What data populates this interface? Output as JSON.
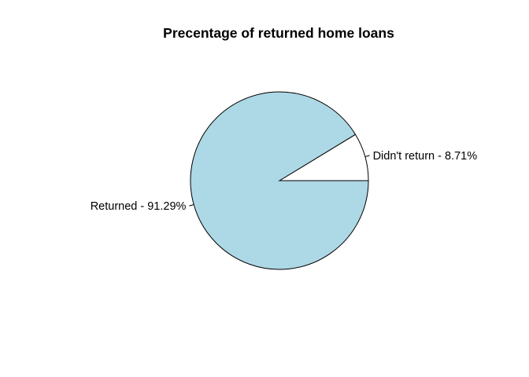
{
  "chart_data": {
    "type": "pie",
    "title": "Precentage of returned home loans",
    "slices": [
      {
        "label": "Didn't return - 8.71%",
        "value": 8.71,
        "color": "#ffffff"
      },
      {
        "label": "Returned - 91.29%",
        "value": 91.29,
        "color": "#add8e6"
      }
    ],
    "outline_color": "#000000",
    "direction": "counterclockwise",
    "start": "3 o'clock"
  }
}
